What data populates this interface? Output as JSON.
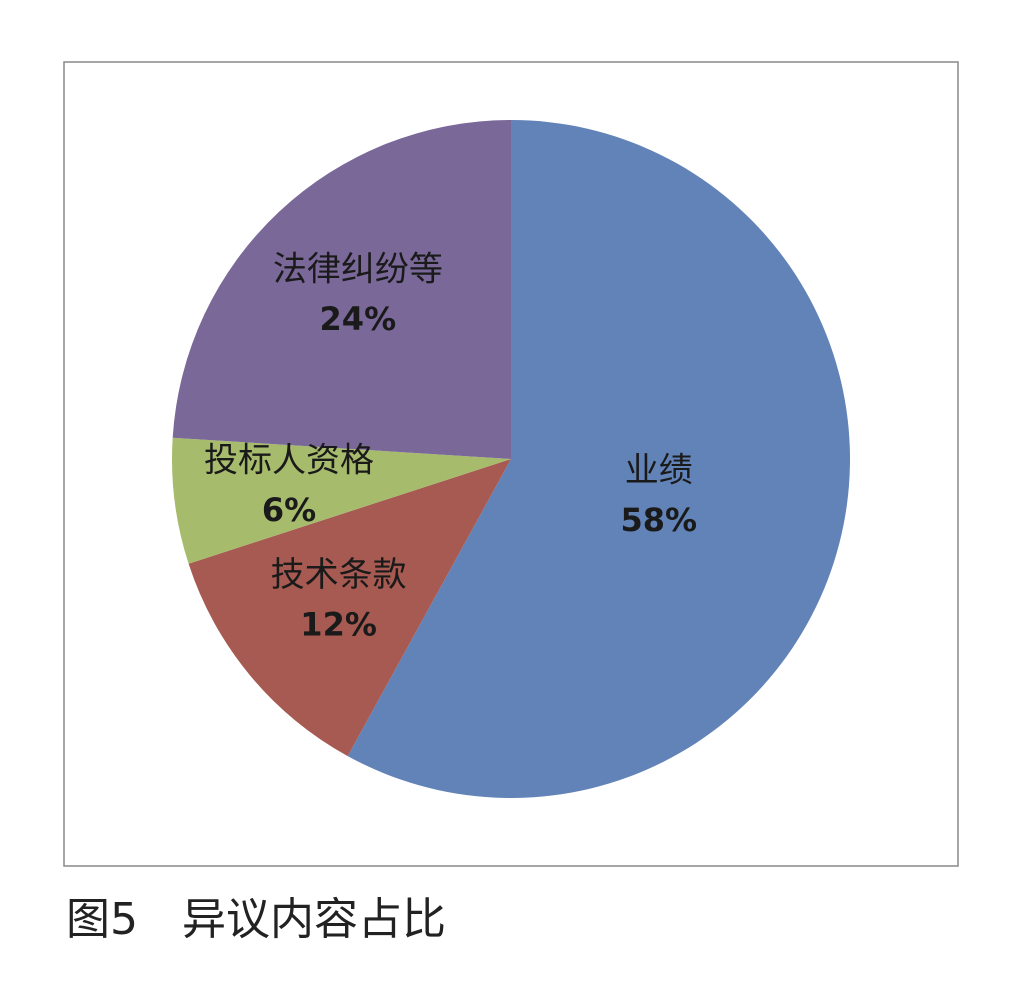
{
  "chart_data": {
    "type": "pie",
    "caption": "图5　异议内容占比",
    "categories": [
      "业绩",
      "技术条款",
      "投标人资格",
      "法律纠纷等"
    ],
    "values": [
      58,
      12,
      6,
      24
    ],
    "value_labels": [
      "58%",
      "12%",
      "6%",
      "24%"
    ],
    "colors": [
      "#6283b8",
      "#a65a52",
      "#a7bb6d",
      "#7a6899"
    ]
  }
}
